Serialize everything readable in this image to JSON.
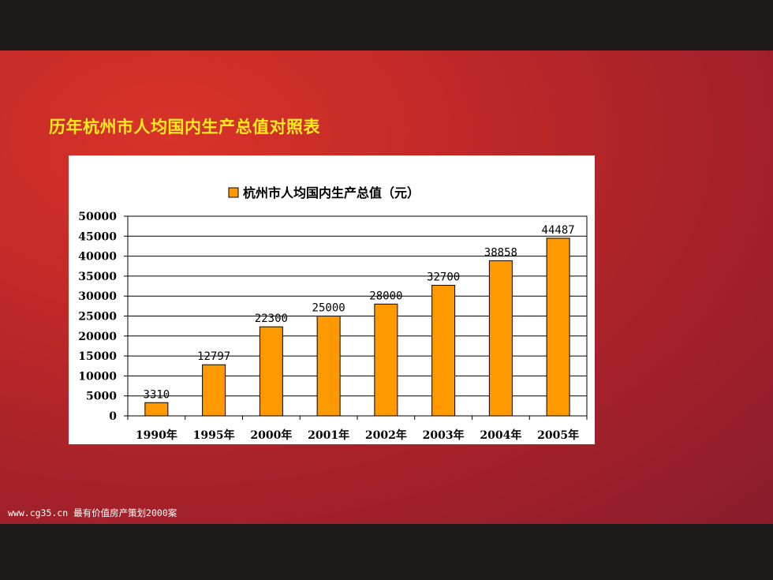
{
  "slide": {
    "title": "历年杭州市人均国内生产总值对照表",
    "footer": "www.cg35.cn 最有价值房产策划2000案"
  },
  "colors": {
    "bar": "#ff9900",
    "background": "#c42a27",
    "title": "#ffeb1a"
  },
  "chart_data": {
    "type": "bar",
    "legend": "杭州市人均国内生产总值（元）",
    "legend_position": "top-center",
    "categories": [
      "1990年",
      "1995年",
      "2000年",
      "2001年",
      "2002年",
      "2003年",
      "2004年",
      "2005年"
    ],
    "series": [
      {
        "name": "杭州市人均国内生产总值（元）",
        "values": [
          3310,
          12797,
          22300,
          25000,
          28000,
          32700,
          38858,
          44487
        ]
      }
    ],
    "data_labels": [
      "3310",
      "12797",
      "22300",
      "25000",
      "28000",
      "32700",
      "38858",
      "44487"
    ],
    "ylim": [
      0,
      50000
    ],
    "yticks": [
      0,
      5000,
      10000,
      15000,
      20000,
      25000,
      30000,
      35000,
      40000,
      45000,
      50000
    ],
    "ytick_labels": [
      "0",
      "5000",
      "10000",
      "15000",
      "20000",
      "25000",
      "30000",
      "35000",
      "40000",
      "45000",
      "50000"
    ],
    "grid": true
  }
}
